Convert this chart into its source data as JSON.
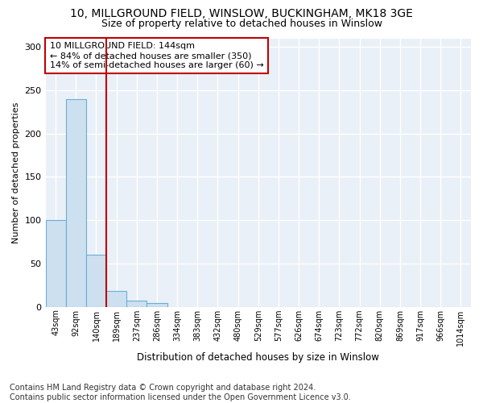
{
  "title": "10, MILLGROUND FIELD, WINSLOW, BUCKINGHAM, MK18 3GE",
  "subtitle": "Size of property relative to detached houses in Winslow",
  "xlabel": "Distribution of detached houses by size in Winslow",
  "ylabel": "Number of detached properties",
  "bar_labels": [
    "43sqm",
    "92sqm",
    "140sqm",
    "189sqm",
    "237sqm",
    "286sqm",
    "334sqm",
    "383sqm",
    "432sqm",
    "480sqm",
    "529sqm",
    "577sqm",
    "626sqm",
    "674sqm",
    "723sqm",
    "772sqm",
    "820sqm",
    "869sqm",
    "917sqm",
    "966sqm",
    "1014sqm"
  ],
  "bar_values": [
    100,
    240,
    60,
    18,
    7,
    4,
    0,
    0,
    0,
    0,
    0,
    0,
    0,
    0,
    0,
    0,
    0,
    0,
    0,
    0,
    0
  ],
  "bar_color": "#cce0f0",
  "bar_edge_color": "#6aaed6",
  "vline_x": 2.5,
  "vline_color": "#c00000",
  "annotation_text": "10 MILLGROUND FIELD: 144sqm\n← 84% of detached houses are smaller (350)\n14% of semi-detached houses are larger (60) →",
  "annotation_box_color": "#ffffff",
  "annotation_box_edge": "#c00000",
  "ylim": [
    0,
    310
  ],
  "yticks": [
    0,
    50,
    100,
    150,
    200,
    250,
    300
  ],
  "footnote": "Contains HM Land Registry data © Crown copyright and database right 2024.\nContains public sector information licensed under the Open Government Licence v3.0.",
  "bg_color": "#ffffff",
  "plot_bg_color": "#eaf0f7",
  "grid_color": "#ffffff",
  "title_fontsize": 10,
  "subtitle_fontsize": 9,
  "annotation_fontsize": 8,
  "footnote_fontsize": 7,
  "ylabel_fontsize": 8,
  "xlabel_fontsize": 8.5
}
